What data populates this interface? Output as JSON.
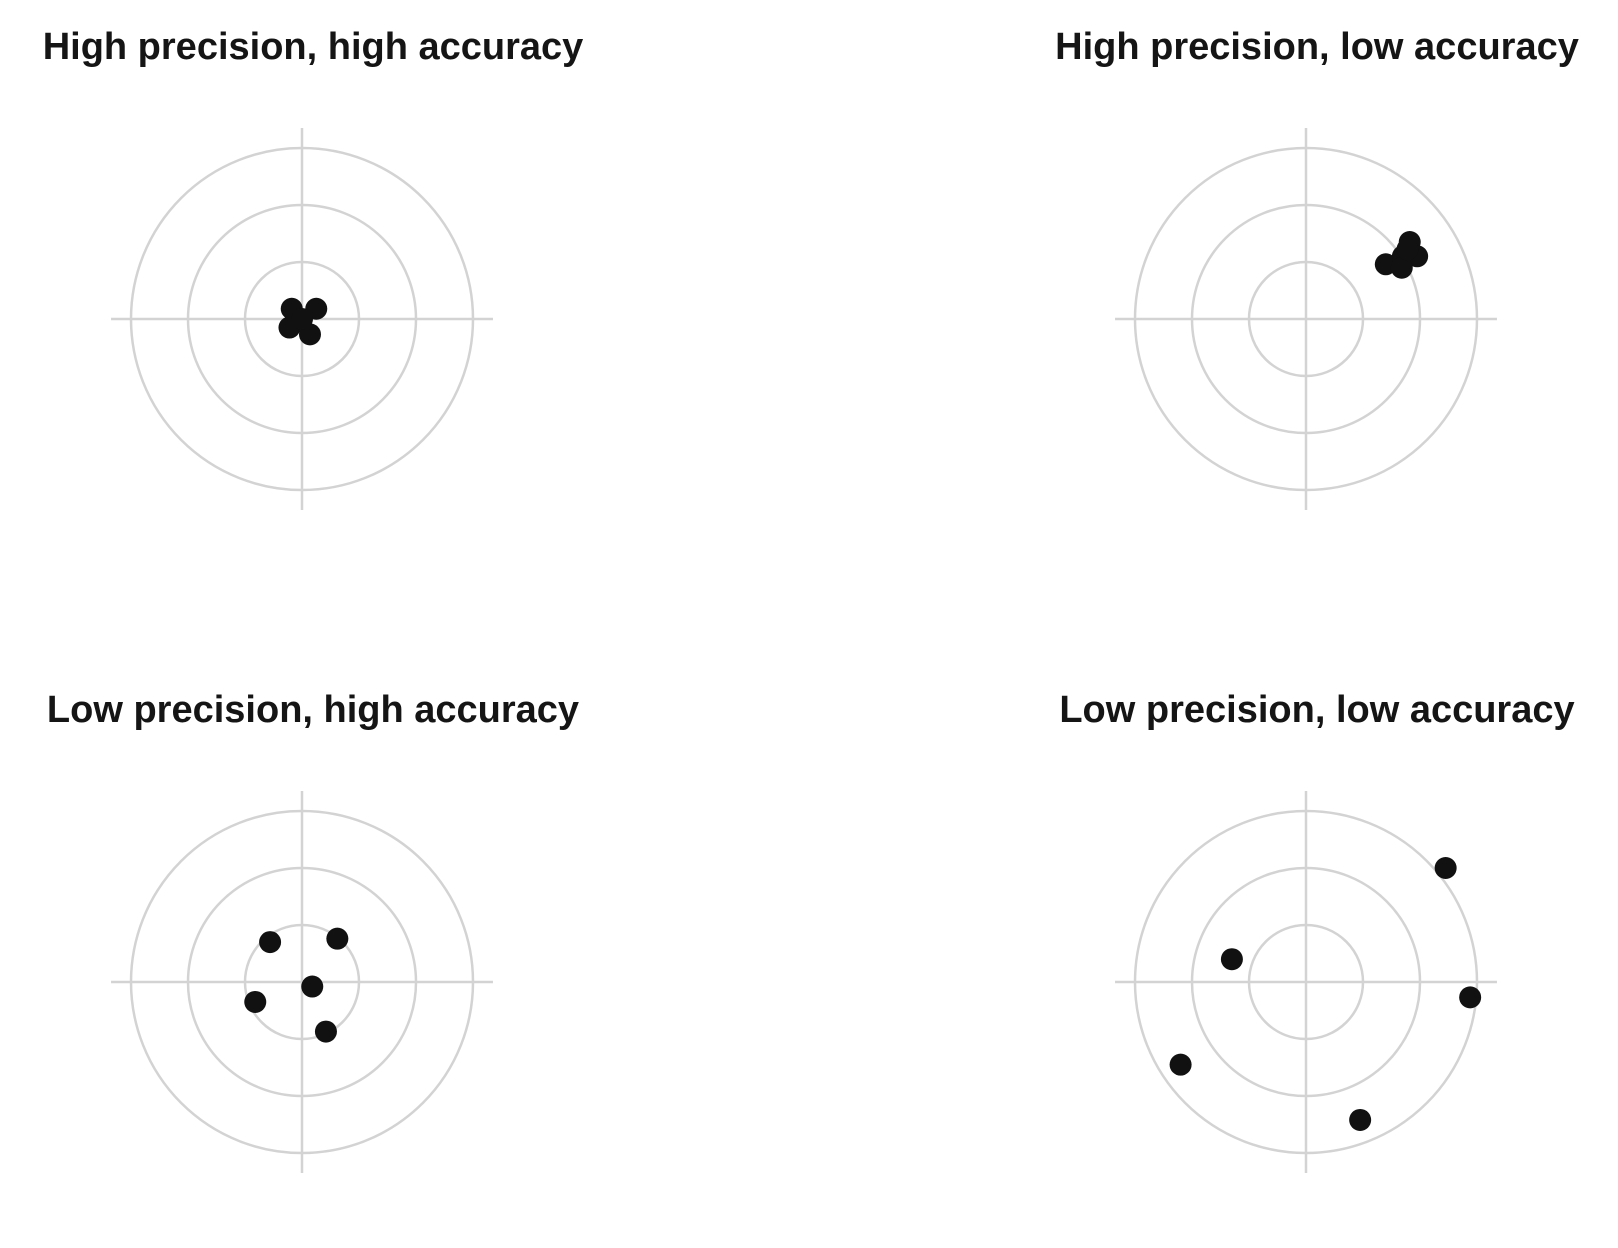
{
  "chart_data": [
    {
      "type": "scatter",
      "title": "High precision, high accuracy",
      "rings": [
        1,
        2,
        3
      ],
      "axes_range": [
        -3.35,
        3.35
      ],
      "ring_color": "#d3d3d3",
      "point_color": "#111111",
      "points": [
        {
          "x": -0.18,
          "y": 0.18
        },
        {
          "x": 0.25,
          "y": 0.18
        },
        {
          "x": -0.22,
          "y": -0.15
        },
        {
          "x": 0.14,
          "y": -0.27
        },
        {
          "x": 0.0,
          "y": 0.0
        }
      ]
    },
    {
      "type": "scatter",
      "title": "High precision, low accuracy",
      "rings": [
        1,
        2,
        3
      ],
      "axes_range": [
        -3.35,
        3.35
      ],
      "ring_color": "#d3d3d3",
      "point_color": "#111111",
      "points": [
        {
          "x": 1.4,
          "y": 0.96
        },
        {
          "x": 1.7,
          "y": 1.1
        },
        {
          "x": 1.82,
          "y": 1.35
        },
        {
          "x": 1.95,
          "y": 1.1
        },
        {
          "x": 1.68,
          "y": 0.9
        },
        {
          "x": 1.78,
          "y": 1.22
        }
      ]
    },
    {
      "type": "scatter",
      "title": "Low precision, high accuracy",
      "rings": [
        1,
        2,
        3
      ],
      "axes_range": [
        -3.35,
        3.35
      ],
      "ring_color": "#d3d3d3",
      "point_color": "#111111",
      "points": [
        {
          "x": -0.56,
          "y": 0.7
        },
        {
          "x": 0.62,
          "y": 0.76
        },
        {
          "x": 0.18,
          "y": -0.08
        },
        {
          "x": -0.82,
          "y": -0.35
        },
        {
          "x": 0.42,
          "y": -0.87
        }
      ]
    },
    {
      "type": "scatter",
      "title": "Low precision, low accuracy",
      "rings": [
        1,
        2,
        3
      ],
      "axes_range": [
        -3.35,
        3.35
      ],
      "ring_color": "#d3d3d3",
      "point_color": "#111111",
      "points": [
        {
          "x": 2.45,
          "y": 2.0
        },
        {
          "x": -1.3,
          "y": 0.4
        },
        {
          "x": 2.88,
          "y": -0.27
        },
        {
          "x": -2.2,
          "y": -1.45
        },
        {
          "x": 0.95,
          "y": -2.42
        }
      ]
    }
  ]
}
